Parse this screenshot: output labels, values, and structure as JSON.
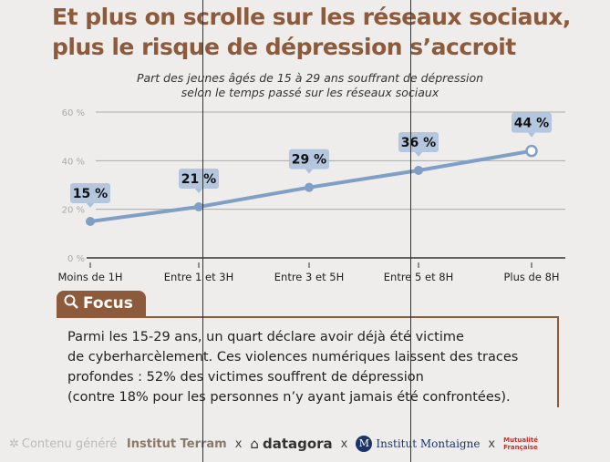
{
  "title_lines": [
    "Et plus on scrolle sur les réseaux sociaux,",
    "plus le risque de dépression s’accroit"
  ],
  "chart_data": {
    "type": "line",
    "title": "Part des jeunes âgés de 15 à 29 ans souffrant de dépression selon le temps passé sur les réseaux sociaux",
    "subtitle_lines": [
      "Part des jeunes âgés de 15 à 29 ans souffrant de dépression",
      "selon le temps passé sur les réseaux sociaux"
    ],
    "categories": [
      "Moins de 1H",
      "Entre 1 et 3H",
      "Entre 3 et 5H",
      "Entre 5 et 8H",
      "Plus de 8H"
    ],
    "values": [
      15,
      21,
      29,
      36,
      44
    ],
    "data_labels": [
      "15 %",
      "21 %",
      "29 %",
      "36 %",
      "44 %"
    ],
    "yticks": [
      "0 %",
      "20 %",
      "40 %",
      "60 %"
    ],
    "ylim": [
      0,
      60
    ],
    "grid": true,
    "line_color": "#7f9fc6",
    "label_bg": "#a9c0dd"
  },
  "focus": {
    "label": "Focus",
    "icon": "search-icon",
    "text_lines": [
      "Parmi les 15-29 ans, un quart déclare avoir déjà été victime",
      "de cyberharcèlement. Ces violences numériques laissent des traces",
      "profondes : 52% des victimes souffrent de dépression",
      "(contre 18% pour les personnes n’y ayant jamais été confrontées)."
    ]
  },
  "footer": {
    "generated": "Contenu généré",
    "partners": [
      "Institut Terram",
      "datagora",
      "Institut Montaigne",
      "Mutualité Française"
    ],
    "sep": "x"
  },
  "colors": {
    "brand": "#8d5a3b",
    "background": "#eeedeb"
  }
}
